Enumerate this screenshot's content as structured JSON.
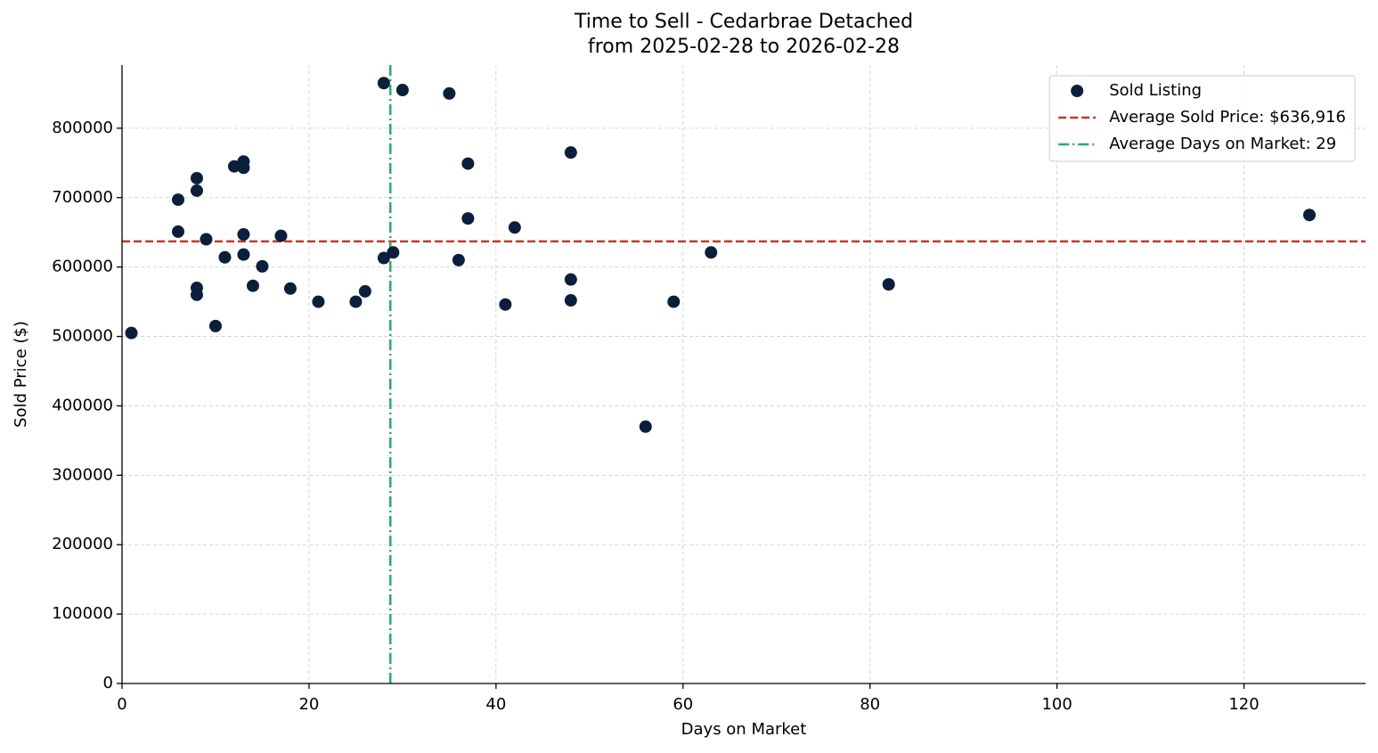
{
  "chart_data": {
    "type": "scatter",
    "title": "Time to Sell - Cedarbrae Detached",
    "subtitle": "from 2025-02-28 to 2026-02-28",
    "x_label": "Days on Market",
    "y_label": "Sold Price ($)",
    "xlim": [
      0,
      133
    ],
    "ylim": [
      0,
      891000
    ],
    "xticks": [
      0,
      20,
      40,
      60,
      80,
      100,
      120
    ],
    "yticks": [
      0,
      100000,
      200000,
      300000,
      400000,
      500000,
      600000,
      700000,
      800000
    ],
    "grid": true,
    "legend": "upper right",
    "series": [
      {
        "name": "Sold Listing",
        "color": "#0b1f3a",
        "x": [
          1,
          6,
          6,
          8,
          8,
          8,
          8,
          9,
          10,
          11,
          12,
          13,
          13,
          13,
          13,
          14,
          15,
          17,
          18,
          21,
          25,
          26,
          28,
          28,
          29,
          30,
          35,
          36,
          37,
          37,
          41,
          42,
          48,
          48,
          48,
          56,
          59,
          63,
          82,
          127
        ],
        "values": [
          505000,
          697000,
          651000,
          728000,
          710000,
          570000,
          560000,
          640000,
          515000,
          614000,
          745000,
          752000,
          743000,
          647000,
          618000,
          573000,
          601000,
          645000,
          569000,
          550000,
          550000,
          565000,
          865000,
          613000,
          621000,
          855000,
          850000,
          610000,
          749000,
          670000,
          546000,
          657000,
          765000,
          582000,
          552000,
          370000,
          550000,
          621000,
          575000,
          675000
        ]
      }
    ],
    "hlines": [
      {
        "name": "Average Sold Price: $636,916",
        "value": 636916,
        "color": "#c0392b",
        "style": "dashed"
      }
    ],
    "vlines": [
      {
        "name": "Average Days on Market: 29",
        "value": 28.7,
        "color": "#27ae60",
        "style": "dashdot"
      }
    ]
  }
}
